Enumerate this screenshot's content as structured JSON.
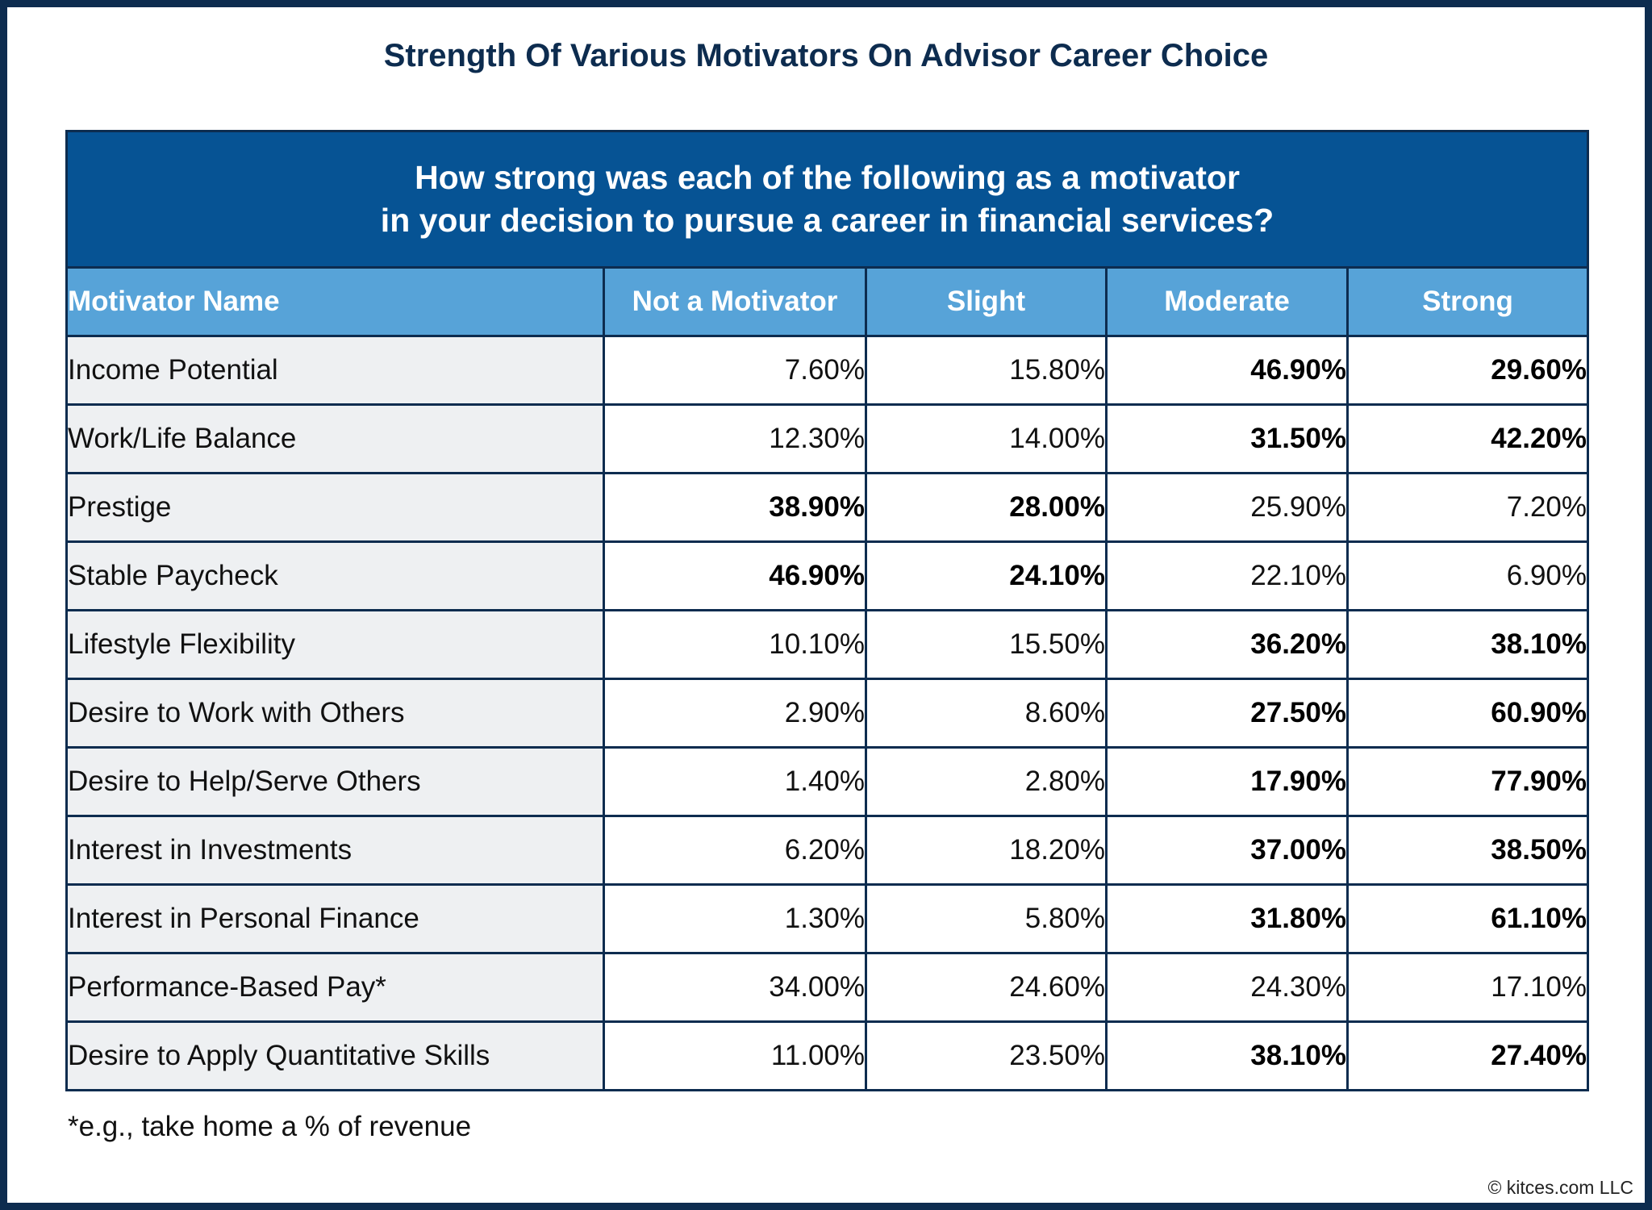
{
  "title": "Strength Of Various Motivators On Advisor Career Choice",
  "table": {
    "question": [
      "How strong was each of the following as a motivator",
      "in your decision to pursue a career in financial services?"
    ],
    "header": [
      "Motivator Name",
      "Not a Motivator",
      "Slight",
      "Moderate",
      "Strong"
    ],
    "rows": [
      [
        "Income Potential",
        "7.60%",
        "15.80%",
        "46.90%",
        "29.60%"
      ],
      [
        "Work/Life Balance",
        "12.30%",
        "14.00%",
        "31.50%",
        "42.20%"
      ],
      [
        "Prestige",
        "38.90%",
        "28.00%",
        "25.90%",
        "7.20%"
      ],
      [
        "Stable Paycheck",
        "46.90%",
        "24.10%",
        "22.10%",
        "6.90%"
      ],
      [
        "Lifestyle Flexibility",
        "10.10%",
        "15.50%",
        "36.20%",
        "38.10%"
      ],
      [
        "Desire to Work with Others",
        "2.90%",
        "8.60%",
        "27.50%",
        "60.90%"
      ],
      [
        "Desire to Help/Serve Others",
        "1.40%",
        "2.80%",
        "17.90%",
        "77.90%"
      ],
      [
        "Interest in Investments",
        "6.20%",
        "18.20%",
        "37.00%",
        "38.50%"
      ],
      [
        "Interest in Personal Finance",
        "1.30%",
        "5.80%",
        "31.80%",
        "61.10%"
      ],
      [
        "Performance-Based Pay*",
        "34.00%",
        "24.60%",
        "24.30%",
        "17.10%"
      ],
      [
        "Desire to Apply Quantitative Skills",
        "11.00%",
        "23.50%",
        "38.10%",
        "27.40%"
      ]
    ]
  },
  "footnote": "*e.g., take home a % of revenue",
  "copyright": "© kitces.com LLC"
}
